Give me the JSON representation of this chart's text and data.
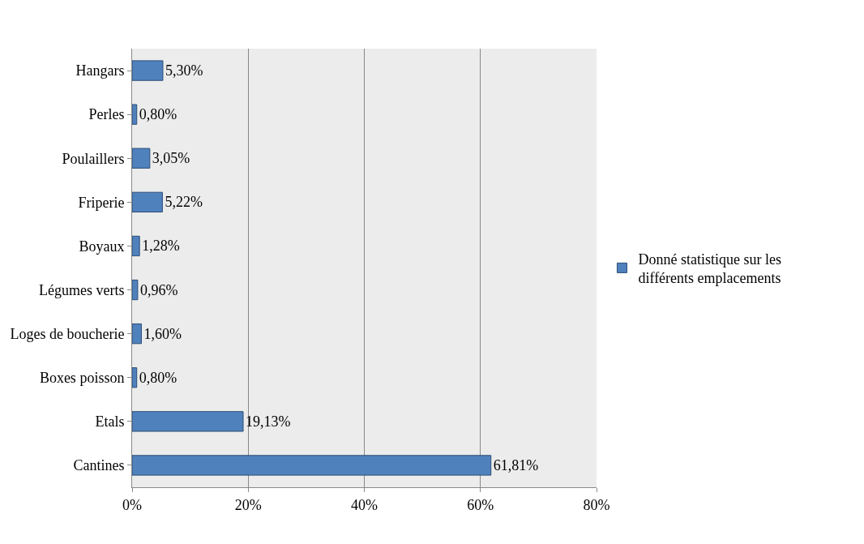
{
  "chart_data": {
    "type": "bar",
    "orientation": "horizontal",
    "categories": [
      "Hangars",
      "Perles",
      "Poulaillers",
      "Friperie",
      "Boyaux",
      "Légumes verts",
      "Loges de boucherie",
      "Boxes poisson",
      "Etals",
      "Cantines"
    ],
    "series": [
      {
        "name": "Donné statistique sur les différents emplacements",
        "color": "#4f81bd",
        "values": [
          5.3,
          0.8,
          3.05,
          5.22,
          1.28,
          0.96,
          1.6,
          0.8,
          19.13,
          61.81
        ],
        "value_labels": [
          "5,30%",
          "0,80%",
          "3,05%",
          "5,22%",
          "1,28%",
          "0,96%",
          "1,60%",
          "0,80%",
          "19,13%",
          "61,81%"
        ]
      }
    ],
    "xlim": [
      0,
      80
    ],
    "xticks": [
      {
        "value": 0,
        "label": "0%"
      },
      {
        "value": 20,
        "label": "20%"
      },
      {
        "value": 40,
        "label": "40%"
      },
      {
        "value": 60,
        "label": "60%"
      },
      {
        "value": 80,
        "label": "80%"
      }
    ],
    "grid": "x",
    "legend": "right"
  }
}
